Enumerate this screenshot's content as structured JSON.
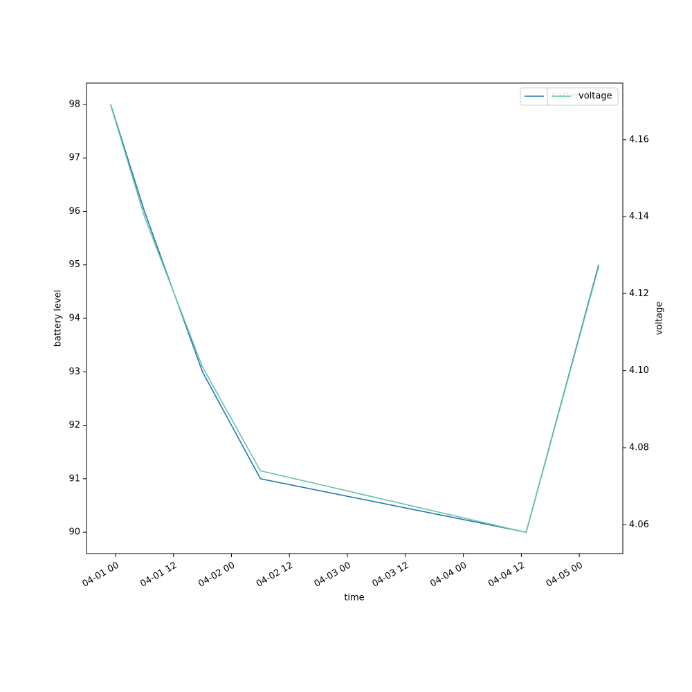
{
  "chart_data": {
    "type": "line",
    "x": [
      "03-31 23",
      "04-01 06",
      "04-01 18",
      "04-02 06",
      "04-04 13",
      "04-05 04"
    ],
    "xlim": [
      "03-31 18",
      "04-05 09"
    ],
    "xticks": [
      "04-01 00",
      "04-01 12",
      "04-02 00",
      "04-02 12",
      "04-03 00",
      "04-03 12",
      "04-04 00",
      "04-04 12",
      "04-05 00"
    ],
    "xlabel": "time",
    "ylabel": "battery level",
    "y2label": "voltage",
    "ylim": [
      89.6,
      98.4
    ],
    "yticks": [
      90,
      91,
      92,
      93,
      94,
      95,
      96,
      97,
      98
    ],
    "y2lim": [
      4.0525,
      4.1747
    ],
    "y2ticks": [
      4.06,
      4.08,
      {
        "value": 4.1,
        "label": "4.10"
      },
      4.12,
      4.14,
      4.16
    ],
    "series": [
      {
        "name": "battery level",
        "color": "#1f77b4",
        "values": [
          98,
          96,
          93,
          91,
          90,
          95
        ]
      },
      {
        "name": "voltage",
        "color": "#66c2a5",
        "axis": "y2",
        "values": [
          4.169,
          4.14,
          4.101,
          4.074,
          4.058,
          4.127
        ]
      }
    ],
    "legend": "upper right"
  }
}
